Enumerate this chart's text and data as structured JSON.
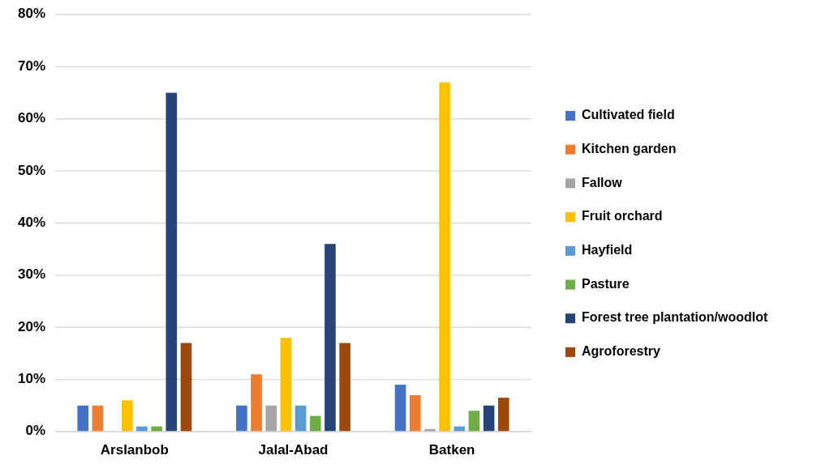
{
  "chart_data": {
    "type": "bar",
    "categories": [
      "Arslanbob",
      "Jalal-Abad",
      "Batken"
    ],
    "series": [
      {
        "name": "Cultivated field",
        "color": "#4472c4",
        "values": [
          5,
          5,
          9
        ]
      },
      {
        "name": "Kitchen garden",
        "color": "#ed7d31",
        "values": [
          5,
          11,
          7
        ]
      },
      {
        "name": "Fallow",
        "color": "#a5a5a5",
        "values": [
          0,
          5,
          0.5
        ]
      },
      {
        "name": "Fruit orchard",
        "color": "#ffc000",
        "values": [
          6,
          18,
          67
        ]
      },
      {
        "name": "Hayfield",
        "color": "#5b9bd5",
        "values": [
          1,
          5,
          1
        ]
      },
      {
        "name": "Pasture",
        "color": "#70ad47",
        "values": [
          1,
          3,
          4
        ]
      },
      {
        "name": "Forest tree plantation/woodlot",
        "color": "#264478",
        "values": [
          65,
          36,
          5
        ]
      },
      {
        "name": "Agroforestry",
        "color": "#9e480e",
        "values": [
          17,
          17,
          6.5
        ]
      }
    ],
    "ylim": [
      0,
      80
    ],
    "yticks": [
      {
        "value": 0,
        "label": "0%"
      },
      {
        "value": 10,
        "label": "10%"
      },
      {
        "value": 20,
        "label": "20%"
      },
      {
        "value": 30,
        "label": "30%"
      },
      {
        "value": 40,
        "label": "40%"
      },
      {
        "value": 50,
        "label": "50%"
      },
      {
        "value": 60,
        "label": "60%"
      },
      {
        "value": 70,
        "label": "70%"
      },
      {
        "value": 80,
        "label": "80%"
      }
    ],
    "grid": "y",
    "legend": "right"
  }
}
